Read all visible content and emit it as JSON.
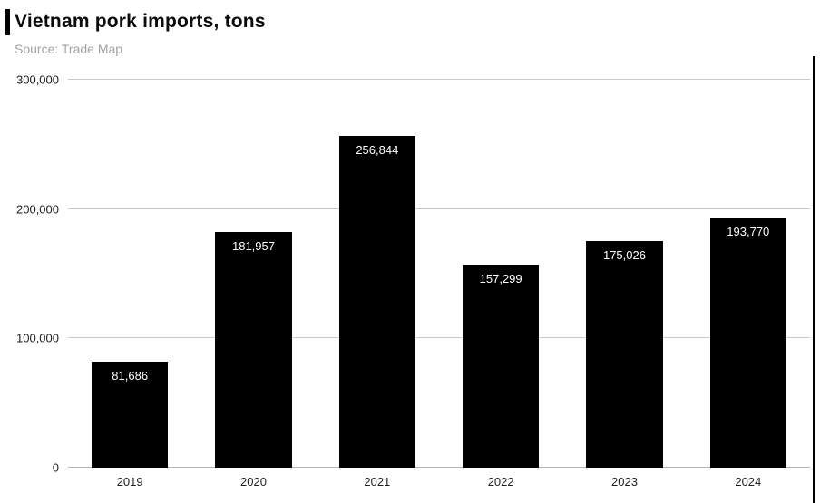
{
  "chart_data": {
    "type": "bar",
    "title": "Vietnam pork imports, tons",
    "source": "Source: Trade Map",
    "categories": [
      "2019",
      "2020",
      "2021",
      "2022",
      "2023",
      "2024"
    ],
    "values": [
      81686,
      181957,
      256844,
      157299,
      175026,
      193770
    ],
    "value_labels": [
      "81,686",
      "181,957",
      "256,844",
      "157,299",
      "175,026",
      "193,770"
    ],
    "xlabel": "",
    "ylabel": "",
    "ylim": [
      0,
      300000
    ],
    "yticks": [
      {
        "value": 0,
        "label": "0"
      },
      {
        "value": 100000,
        "label": "100,000"
      },
      {
        "value": 200000,
        "label": "200,000"
      },
      {
        "value": 300000,
        "label": "300,000"
      }
    ],
    "grid": true,
    "legend": "none",
    "bar_color": "#000000",
    "value_label_color": "#ffffff",
    "background_color": "#ffffff"
  }
}
